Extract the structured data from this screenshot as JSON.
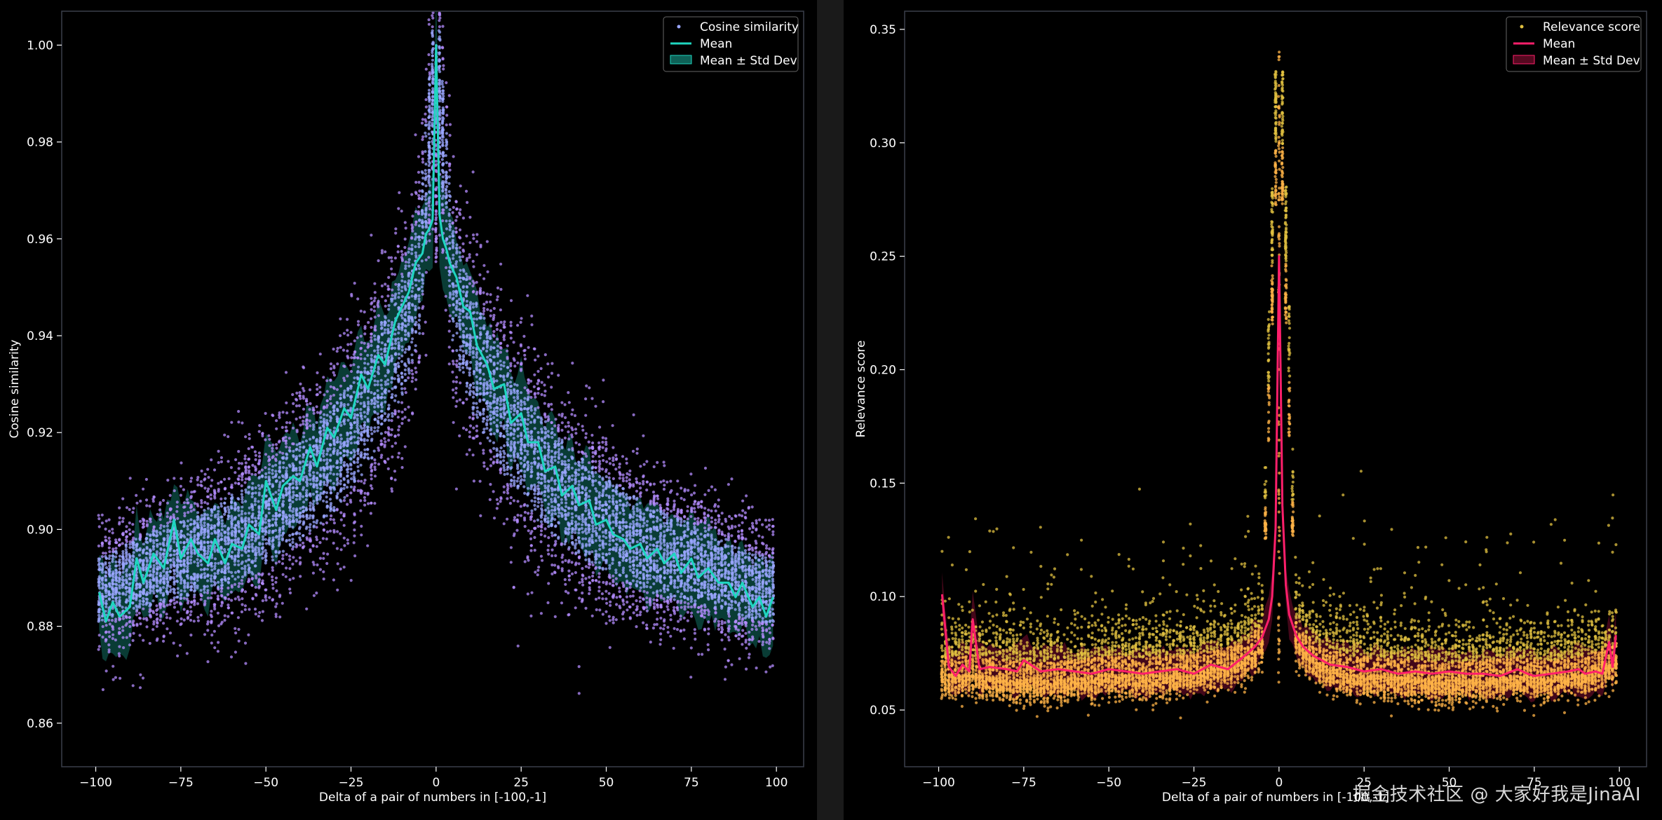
{
  "chart_data": [
    {
      "type": "scatter",
      "xlabel": "Delta of a pair of numbers in [-100,-1]",
      "ylabel": "Cosine similarity",
      "xlim": [
        -110,
        108
      ],
      "ylim": [
        0.851,
        1.007
      ],
      "xticks": [
        -100,
        -75,
        -50,
        -25,
        0,
        25,
        50,
        75,
        100
      ],
      "yticks": [
        0.86,
        0.88,
        0.9,
        0.92,
        0.94,
        0.96,
        0.98,
        1.0
      ],
      "ytick_labels": [
        "0.86",
        "0.88",
        "0.90",
        "0.92",
        "0.94",
        "0.96",
        "0.98",
        "1.00"
      ],
      "legend_position": "top-right",
      "grid": false,
      "colors": {
        "points": "#b48cff",
        "mean": "#1fd6c0",
        "band": "#1fd6c0"
      },
      "series": [
        {
          "name": "Cosine similarity",
          "kind": "scatter",
          "x": [
            -100,
            -90,
            -80,
            -70,
            -60,
            -50,
            -40,
            -30,
            -20,
            -10,
            -5,
            0,
            5,
            10,
            20,
            30,
            40,
            50,
            60,
            70,
            80,
            90,
            100
          ],
          "y": [
            0.887,
            0.89,
            0.893,
            0.895,
            0.898,
            0.902,
            0.908,
            0.915,
            0.925,
            0.94,
            0.952,
            1.0,
            0.95,
            0.938,
            0.923,
            0.913,
            0.906,
            0.901,
            0.897,
            0.894,
            0.892,
            0.889,
            0.887
          ]
        },
        {
          "name": "Mean",
          "kind": "line",
          "x": [
            -99,
            -97,
            -95,
            -93,
            -90,
            -88,
            -86,
            -83,
            -80,
            -77,
            -75,
            -72,
            -70,
            -67,
            -65,
            -62,
            -60,
            -57,
            -55,
            -52,
            -50,
            -47,
            -45,
            -42,
            -40,
            -37,
            -35,
            -32,
            -30,
            -27,
            -25,
            -22,
            -20,
            -17,
            -15,
            -12,
            -10,
            -8,
            -6,
            -4,
            -3,
            -2,
            -1,
            0,
            1,
            2,
            3,
            4,
            6,
            8,
            10,
            12,
            15,
            17,
            20,
            22,
            25,
            27,
            30,
            32,
            35,
            37,
            40,
            42,
            45,
            47,
            50,
            52,
            55,
            57,
            60,
            62,
            65,
            67,
            70,
            72,
            75,
            77,
            80,
            83,
            86,
            88,
            90,
            93,
            95,
            97,
            99
          ],
          "y": [
            0.887,
            0.881,
            0.885,
            0.882,
            0.884,
            0.894,
            0.889,
            0.895,
            0.892,
            0.902,
            0.894,
            0.898,
            0.895,
            0.893,
            0.898,
            0.893,
            0.897,
            0.896,
            0.901,
            0.899,
            0.91,
            0.904,
            0.909,
            0.911,
            0.91,
            0.917,
            0.913,
            0.921,
            0.919,
            0.925,
            0.923,
            0.932,
            0.929,
            0.936,
            0.934,
            0.943,
            0.946,
            0.949,
            0.955,
            0.957,
            0.961,
            0.962,
            0.964,
            1.0,
            0.965,
            0.96,
            0.958,
            0.955,
            0.952,
            0.946,
            0.945,
            0.938,
            0.934,
            0.929,
            0.93,
            0.922,
            0.924,
            0.918,
            0.918,
            0.912,
            0.913,
            0.907,
            0.909,
            0.905,
            0.906,
            0.901,
            0.902,
            0.899,
            0.898,
            0.896,
            0.897,
            0.894,
            0.896,
            0.893,
            0.895,
            0.891,
            0.894,
            0.89,
            0.892,
            0.889,
            0.889,
            0.886,
            0.889,
            0.884,
            0.886,
            0.882,
            0.886
          ]
        },
        {
          "name": "Mean ± Std Dev",
          "kind": "band",
          "half_width": 0.0095
        }
      ]
    },
    {
      "type": "scatter",
      "xlabel": "Delta of a pair of numbers in [-100,-1]",
      "ylabel": "Relevance score",
      "xlim": [
        -110,
        108
      ],
      "ylim": [
        0.025,
        0.358
      ],
      "xticks": [
        -100,
        -75,
        -50,
        -25,
        0,
        25,
        50,
        75,
        100
      ],
      "yticks": [
        0.05,
        0.1,
        0.15,
        0.2,
        0.25,
        0.3,
        0.35
      ],
      "ytick_labels": [
        "0.05",
        "0.10",
        "0.15",
        "0.20",
        "0.25",
        "0.30",
        "0.35"
      ],
      "legend_position": "top-right",
      "grid": false,
      "colors": {
        "points_low": "#ffb347",
        "points_high": "#e0c040",
        "mean": "#ff1f6b",
        "band": "#7a0d2e"
      },
      "series": [
        {
          "name": "Relevance score",
          "kind": "scatter",
          "x": [
            -100,
            -90,
            -80,
            -70,
            -60,
            -50,
            -40,
            -30,
            -20,
            -10,
            -5,
            0,
            5,
            10,
            20,
            30,
            40,
            50,
            60,
            70,
            80,
            90,
            100
          ],
          "y": [
            0.065,
            0.066,
            0.064,
            0.063,
            0.064,
            0.066,
            0.065,
            0.066,
            0.068,
            0.072,
            0.08,
            0.343,
            0.082,
            0.072,
            0.066,
            0.065,
            0.064,
            0.063,
            0.064,
            0.065,
            0.064,
            0.066,
            0.072
          ]
        },
        {
          "name": "Mean",
          "kind": "line",
          "x": [
            -99,
            -97,
            -95,
            -93,
            -91,
            -90,
            -88,
            -85,
            -80,
            -77,
            -75,
            -70,
            -65,
            -60,
            -55,
            -50,
            -45,
            -40,
            -35,
            -30,
            -25,
            -20,
            -15,
            -10,
            -7,
            -5,
            -3,
            -2,
            -1,
            0,
            1,
            2,
            3,
            5,
            7,
            10,
            15,
            20,
            25,
            30,
            35,
            40,
            45,
            50,
            55,
            60,
            65,
            70,
            73,
            75,
            80,
            85,
            88,
            90,
            93,
            95,
            97,
            98,
            99
          ],
          "y": [
            0.101,
            0.069,
            0.065,
            0.07,
            0.067,
            0.09,
            0.068,
            0.069,
            0.068,
            0.067,
            0.072,
            0.067,
            0.068,
            0.067,
            0.066,
            0.068,
            0.067,
            0.066,
            0.067,
            0.068,
            0.066,
            0.07,
            0.068,
            0.074,
            0.078,
            0.082,
            0.09,
            0.1,
            0.13,
            0.25,
            0.14,
            0.105,
            0.092,
            0.083,
            0.078,
            0.074,
            0.07,
            0.069,
            0.067,
            0.068,
            0.066,
            0.067,
            0.066,
            0.067,
            0.066,
            0.066,
            0.065,
            0.068,
            0.066,
            0.065,
            0.066,
            0.067,
            0.068,
            0.066,
            0.067,
            0.066,
            0.08,
            0.069,
            0.083
          ]
        },
        {
          "name": "Mean ± Std Dev",
          "kind": "band",
          "half_width": 0.01
        }
      ]
    }
  ],
  "watermark": "掘金技术社区 @ 大家好我是JinaAI"
}
